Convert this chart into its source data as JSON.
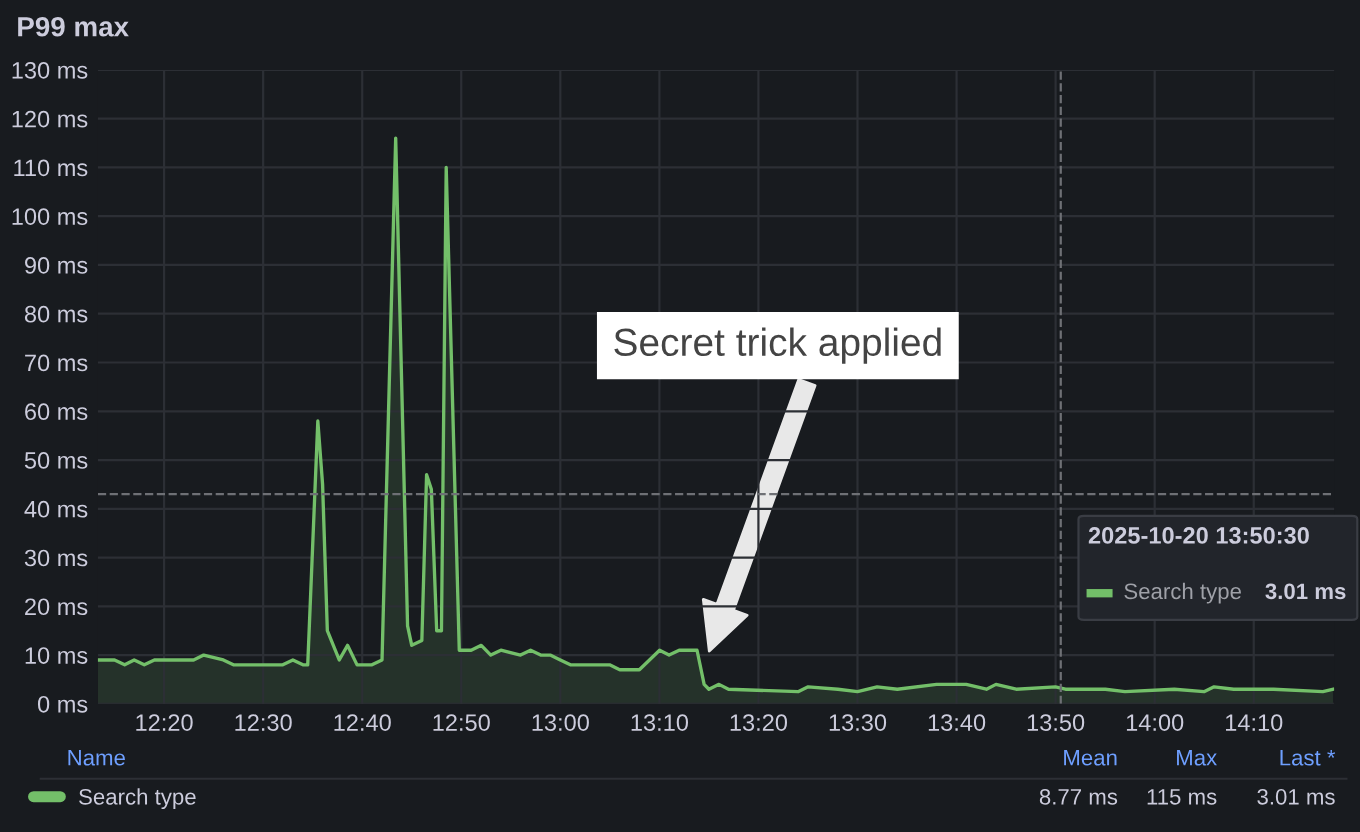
{
  "chart_data": {
    "type": "area",
    "title": "P99 max",
    "x": [
      12.222,
      12.25,
      12.267,
      12.283,
      12.3,
      12.317,
      12.383,
      12.4,
      12.433,
      12.45,
      12.533,
      12.55,
      12.567,
      12.575,
      12.592,
      12.6,
      12.608,
      12.628,
      12.642,
      12.658,
      12.683,
      12.7,
      12.723,
      12.743,
      12.75,
      12.767,
      12.775,
      12.783,
      12.792,
      12.8,
      12.808,
      12.83,
      12.85,
      12.867,
      12.883,
      12.9,
      12.933,
      12.95,
      12.967,
      12.983,
      13.0,
      13.017,
      13.083,
      13.1,
      13.133,
      13.167,
      13.183,
      13.2,
      13.23,
      13.242,
      13.25,
      13.267,
      13.283,
      13.4,
      13.417,
      13.467,
      13.5,
      13.533,
      13.567,
      13.633,
      13.683,
      13.717,
      13.733,
      13.767,
      13.833,
      13.85,
      13.917,
      13.95,
      14.033,
      14.083,
      14.1,
      14.133,
      14.2,
      14.283,
      14.3
    ],
    "series": [
      {
        "name": "Search type",
        "color": "#73bf69",
        "values": [
          9,
          9,
          8,
          9,
          8,
          9,
          9,
          10,
          9,
          8,
          8,
          9,
          8,
          8,
          58,
          45,
          15,
          9,
          12,
          8,
          8,
          9,
          116,
          16,
          12,
          13,
          47,
          44,
          15,
          15,
          110,
          11,
          11,
          12,
          10,
          11,
          10,
          11,
          10,
          10,
          9,
          8,
          8,
          7,
          7,
          11,
          10,
          11,
          11,
          4,
          3,
          4,
          3,
          2.5,
          3.5,
          3,
          2.5,
          3.5,
          3,
          4,
          4,
          3,
          4,
          3,
          3.5,
          3,
          3,
          2.5,
          3,
          2.5,
          3.5,
          3,
          3,
          2.5,
          3
        ]
      }
    ],
    "xlim": [
      12.222,
      14.302
    ],
    "xticks": [
      {
        "value": 12.3333,
        "label": "12:20"
      },
      {
        "value": 12.5,
        "label": "12:30"
      },
      {
        "value": 12.6667,
        "label": "12:40"
      },
      {
        "value": 12.8333,
        "label": "12:50"
      },
      {
        "value": 13.0,
        "label": "13:00"
      },
      {
        "value": 13.1667,
        "label": "13:10"
      },
      {
        "value": 13.3333,
        "label": "13:20"
      },
      {
        "value": 13.5,
        "label": "13:30"
      },
      {
        "value": 13.6667,
        "label": "13:40"
      },
      {
        "value": 13.8333,
        "label": "13:50"
      },
      {
        "value": 14.0,
        "label": "14:00"
      },
      {
        "value": 14.1667,
        "label": "14:10"
      }
    ],
    "ylim": [
      0,
      130
    ],
    "yticks": [
      {
        "value": 0,
        "label": "0 ms"
      },
      {
        "value": 10,
        "label": "10 ms"
      },
      {
        "value": 20,
        "label": "20 ms"
      },
      {
        "value": 30,
        "label": "30 ms"
      },
      {
        "value": 40,
        "label": "40 ms"
      },
      {
        "value": 50,
        "label": "50 ms"
      },
      {
        "value": 60,
        "label": "60 ms"
      },
      {
        "value": 70,
        "label": "70 ms"
      },
      {
        "value": 80,
        "label": "80 ms"
      },
      {
        "value": 90,
        "label": "90 ms"
      },
      {
        "value": 100,
        "label": "100 ms"
      },
      {
        "value": 110,
        "label": "110 ms"
      },
      {
        "value": 120,
        "label": "120 ms"
      },
      {
        "value": 130,
        "label": "130 ms"
      }
    ],
    "grid": true,
    "legend": "bottom",
    "marker": "none",
    "line_style": "solid",
    "ref_lines": [
      {
        "axis": "y",
        "value": 43,
        "label": null,
        "color": "#6e7075",
        "line_style": "dashed"
      },
      {
        "axis": "x",
        "value": 13.842,
        "label": null,
        "color": "#6e7075",
        "line_style": "dashed"
      }
    ],
    "annotations": [
      "Secret trick applied",
      "2025-10-20 13:50:30",
      "Search type",
      "3.01 ms",
      "Name",
      "Mean",
      "Max",
      "Last *",
      "8.77 ms",
      "115 ms",
      "3.01 ms"
    ]
  }
}
